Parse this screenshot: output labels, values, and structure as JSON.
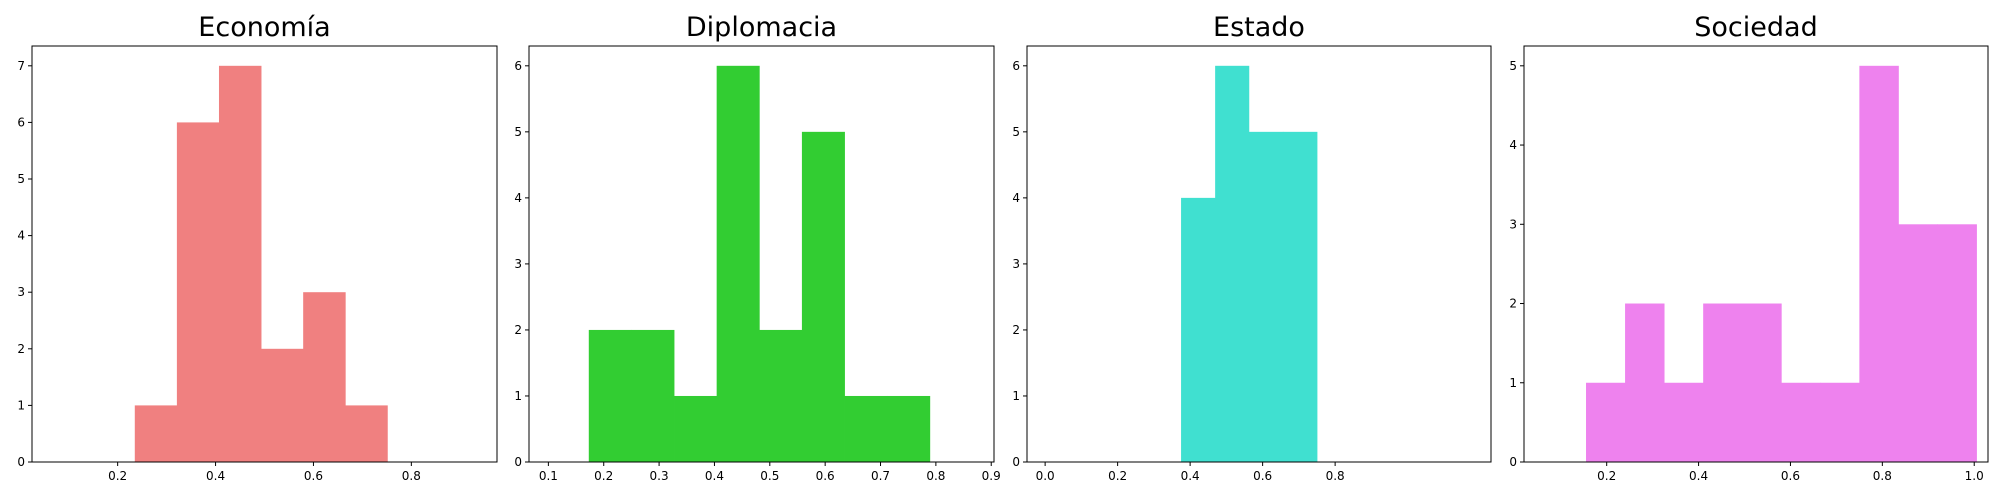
{
  "chart_data": [
    {
      "type": "bar",
      "title": "Economía",
      "color": "#F08080",
      "xlim": [
        0.025,
        0.975
      ],
      "ylim": [
        0,
        7.35
      ],
      "xticks": [
        0.2,
        0.4,
        0.6,
        0.8
      ],
      "yticks": [
        0,
        1,
        2,
        3,
        4,
        5,
        6,
        7
      ],
      "bins": [
        {
          "x0": 0.235,
          "x1": 0.321,
          "count": 1
        },
        {
          "x0": 0.321,
          "x1": 0.407,
          "count": 6
        },
        {
          "x0": 0.407,
          "x1": 0.493,
          "count": 7
        },
        {
          "x0": 0.493,
          "x1": 0.579,
          "count": 2
        },
        {
          "x0": 0.579,
          "x1": 0.665,
          "count": 3
        },
        {
          "x0": 0.665,
          "x1": 0.751,
          "count": 1
        }
      ]
    },
    {
      "type": "bar",
      "title": "Diplomacia",
      "color": "#32CD32",
      "xlim": [
        0.065,
        0.905
      ],
      "ylim": [
        0,
        6.3
      ],
      "xticks": [
        0.1,
        0.2,
        0.3,
        0.4,
        0.5,
        0.6,
        0.7,
        0.8,
        0.9
      ],
      "yticks": [
        0,
        1,
        2,
        3,
        4,
        5,
        6
      ],
      "bins": [
        {
          "x0": 0.173,
          "x1": 0.25,
          "count": 2
        },
        {
          "x0": 0.25,
          "x1": 0.327,
          "count": 2
        },
        {
          "x0": 0.327,
          "x1": 0.404,
          "count": 1
        },
        {
          "x0": 0.404,
          "x1": 0.481,
          "count": 6
        },
        {
          "x0": 0.481,
          "x1": 0.558,
          "count": 2
        },
        {
          "x0": 0.558,
          "x1": 0.635,
          "count": 5
        },
        {
          "x0": 0.635,
          "x1": 0.712,
          "count": 1
        },
        {
          "x0": 0.712,
          "x1": 0.789,
          "count": 1
        }
      ]
    },
    {
      "type": "bar",
      "title": "Estado",
      "color": "#40E0D0",
      "xlim": [
        -0.05,
        1.23
      ],
      "ylim": [
        0,
        6.3
      ],
      "xticks": [
        0.0,
        0.2,
        0.4,
        0.6,
        0.8
      ],
      "yticks": [
        0,
        1,
        2,
        3,
        4,
        5,
        6
      ],
      "bins": [
        {
          "x0": 0.375,
          "x1": 0.469,
          "count": 4
        },
        {
          "x0": 0.469,
          "x1": 0.562,
          "count": 6
        },
        {
          "x0": 0.562,
          "x1": 0.656,
          "count": 5
        },
        {
          "x0": 0.656,
          "x1": 0.75,
          "count": 5
        }
      ]
    },
    {
      "type": "bar",
      "title": "Sociedad",
      "color": "#EE82EE",
      "xlim": [
        0.02,
        1.03
      ],
      "ylim": [
        0,
        5.25
      ],
      "xticks": [
        0.2,
        0.4,
        0.6,
        0.8,
        1.0
      ],
      "yticks": [
        0,
        1,
        2,
        3,
        4,
        5
      ],
      "bins": [
        {
          "x0": 0.155,
          "x1": 0.24,
          "count": 1
        },
        {
          "x0": 0.24,
          "x1": 0.325,
          "count": 2
        },
        {
          "x0": 0.325,
          "x1": 0.41,
          "count": 1
        },
        {
          "x0": 0.41,
          "x1": 0.495,
          "count": 2
        },
        {
          "x0": 0.495,
          "x1": 0.58,
          "count": 2
        },
        {
          "x0": 0.58,
          "x1": 0.665,
          "count": 1
        },
        {
          "x0": 0.665,
          "x1": 0.75,
          "count": 1
        },
        {
          "x0": 0.75,
          "x1": 0.835,
          "count": 5
        },
        {
          "x0": 0.835,
          "x1": 0.92,
          "count": 3
        },
        {
          "x0": 0.92,
          "x1": 1.005,
          "count": 3
        }
      ]
    }
  ]
}
